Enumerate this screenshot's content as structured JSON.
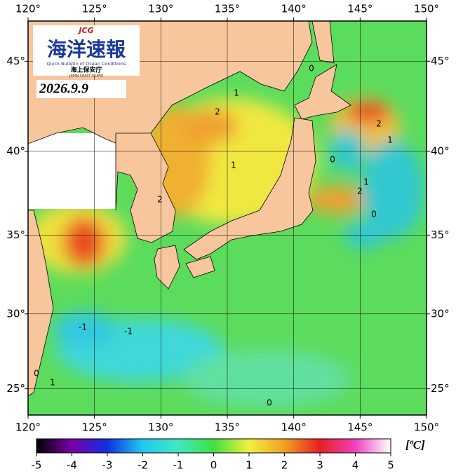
{
  "logo": {
    "badge": "JCG",
    "title": "海洋速報",
    "subtitle": "Quick Bulletin of Ocean Conditions",
    "agency": "海上保安庁",
    "agency_en": "JAPAN COAST GUARD"
  },
  "date": "2026.9.9",
  "chart_data": {
    "type": "map",
    "xlim": [
      120,
      150
    ],
    "ylim": [
      23.2,
      47.1
    ],
    "xticks": [
      {
        "value": 120,
        "label": "120°"
      },
      {
        "value": 125,
        "label": "125°"
      },
      {
        "value": 130,
        "label": "130°"
      },
      {
        "value": 135,
        "label": "135°"
      },
      {
        "value": 140,
        "label": "140°"
      },
      {
        "value": 145,
        "label": "145°"
      },
      {
        "value": 150,
        "label": "150°"
      }
    ],
    "yticks": [
      {
        "value": 25,
        "label": "25°"
      },
      {
        "value": 30,
        "label": "30°"
      },
      {
        "value": 35,
        "label": "35°"
      },
      {
        "value": 40,
        "label": "40°"
      },
      {
        "value": 45,
        "label": "45°"
      }
    ],
    "grid": true,
    "contour_labels": [
      "1",
      "2",
      "2",
      "1",
      "1",
      "2",
      "0",
      "0",
      "1",
      "2",
      "0",
      "-1",
      "-1",
      "0",
      "1",
      "0"
    ],
    "colorbar": {
      "lim": [
        -5,
        5
      ],
      "ticks": [
        -5,
        -4,
        -3,
        -2,
        -1,
        0,
        1,
        2,
        3,
        4,
        5
      ],
      "unit": "[ºC]",
      "colors": [
        "#000000",
        "#7a00a8",
        "#1030e0",
        "#20c8f0",
        "#40e8c0",
        "#40e040",
        "#f0f040",
        "#f0a020",
        "#e82020",
        "#f040c0",
        "#ffffff"
      ]
    }
  }
}
